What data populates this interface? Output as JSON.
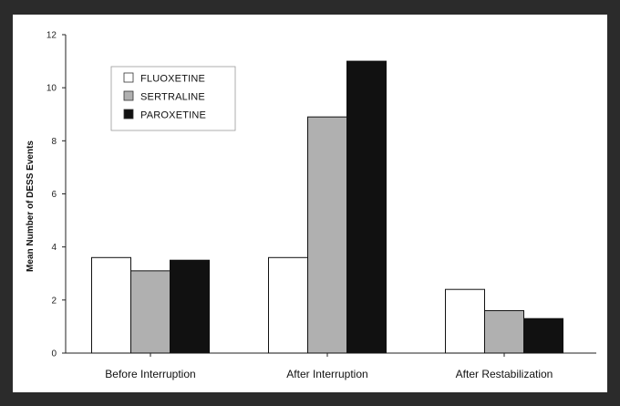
{
  "chart_data": {
    "type": "bar",
    "title": "",
    "xlabel": "",
    "ylabel": "Mean Number of DESS Events",
    "ylim": [
      0,
      12
    ],
    "yticks": [
      0,
      2,
      4,
      6,
      8,
      10,
      12
    ],
    "categories": [
      "Before Interruption",
      "After Interruption",
      "After Restabilization"
    ],
    "series": [
      {
        "name": "FLUOXETINE",
        "values": [
          3.6,
          3.6,
          2.4
        ],
        "color": "#ffffff"
      },
      {
        "name": "SERTRALINE",
        "values": [
          3.1,
          8.9,
          1.6
        ],
        "color": "#b0b0b0"
      },
      {
        "name": "PAROXETINE",
        "values": [
          3.5,
          11.0,
          1.3
        ],
        "color": "#111111"
      }
    ],
    "legend_position": "top-left",
    "grid": false
  }
}
